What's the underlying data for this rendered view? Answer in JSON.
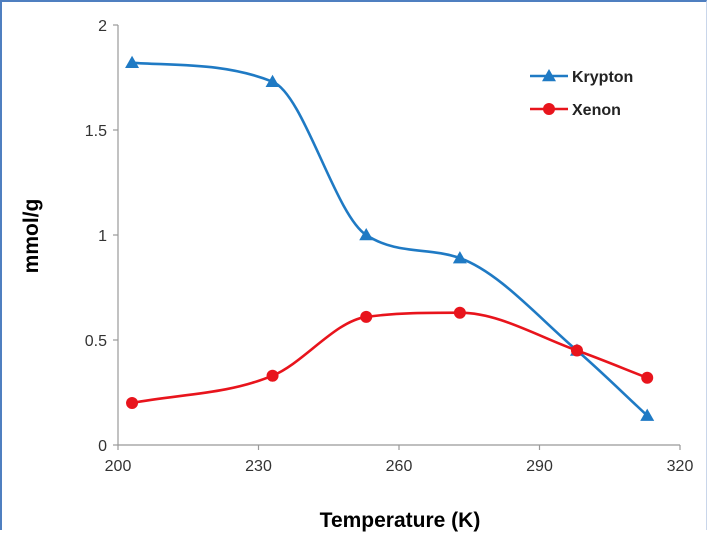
{
  "chart_data": {
    "type": "line",
    "xlabel": "Temperature (K)",
    "ylabel": "mmol/g",
    "xlim": [
      200,
      320
    ],
    "ylim": [
      0,
      2
    ],
    "xticks": [
      "200",
      "230",
      "260",
      "290",
      "320"
    ],
    "yticks": [
      "0",
      "0.5",
      "1",
      "1.5",
      "2"
    ],
    "x_tick_values": [
      200,
      230,
      260,
      290,
      320
    ],
    "y_tick_values": [
      0,
      0.5,
      1,
      1.5,
      2
    ],
    "grid": false,
    "legend_position": "top-right",
    "series": [
      {
        "name": "Krypton",
        "color": "#1f7ac4",
        "marker": "triangle",
        "x": [
          203,
          233,
          253,
          273,
          298,
          313
        ],
        "y": [
          1.82,
          1.73,
          1.0,
          0.89,
          0.45,
          0.14
        ]
      },
      {
        "name": "Xenon",
        "color": "#e8141c",
        "marker": "circle",
        "x": [
          203,
          233,
          253,
          273,
          298,
          313
        ],
        "y": [
          0.2,
          0.33,
          0.61,
          0.63,
          0.45,
          0.32
        ]
      }
    ]
  }
}
